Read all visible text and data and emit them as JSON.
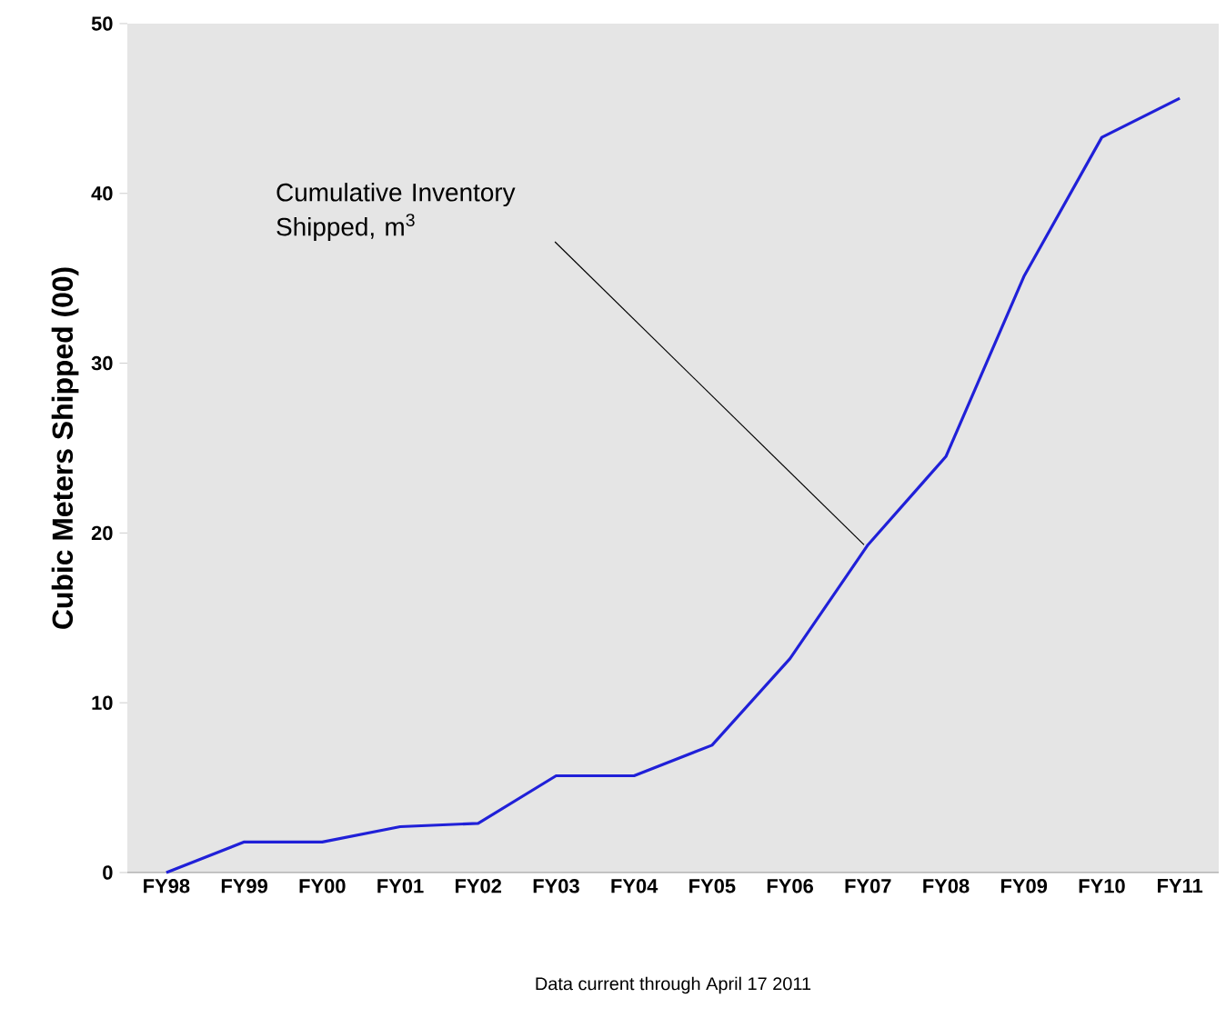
{
  "chart_data": {
    "type": "line",
    "ylabel": "Cubic Meters Shipped (00)",
    "categories": [
      "FY98",
      "FY99",
      "FY00",
      "FY01",
      "FY02",
      "FY03",
      "FY04",
      "FY05",
      "FY06",
      "FY07",
      "FY08",
      "FY09",
      "FY10",
      "FY11"
    ],
    "series": [
      {
        "color": "#2020d8",
        "values": [
          0,
          1.8,
          1.8,
          2.7,
          2.9,
          5.7,
          5.7,
          7.5,
          12.6,
          19.3,
          24.5,
          35.1,
          43.3,
          45.6
        ]
      }
    ],
    "ylim": [
      0,
      50
    ],
    "yticks": [
      0,
      10,
      20,
      30,
      40,
      50
    ],
    "grid": false,
    "marker": "none",
    "line_style": "solid",
    "annotations": [
      "Cumulative Inventory Shipped, m$^{3}$",
      "Data current through April 17 2011"
    ]
  }
}
